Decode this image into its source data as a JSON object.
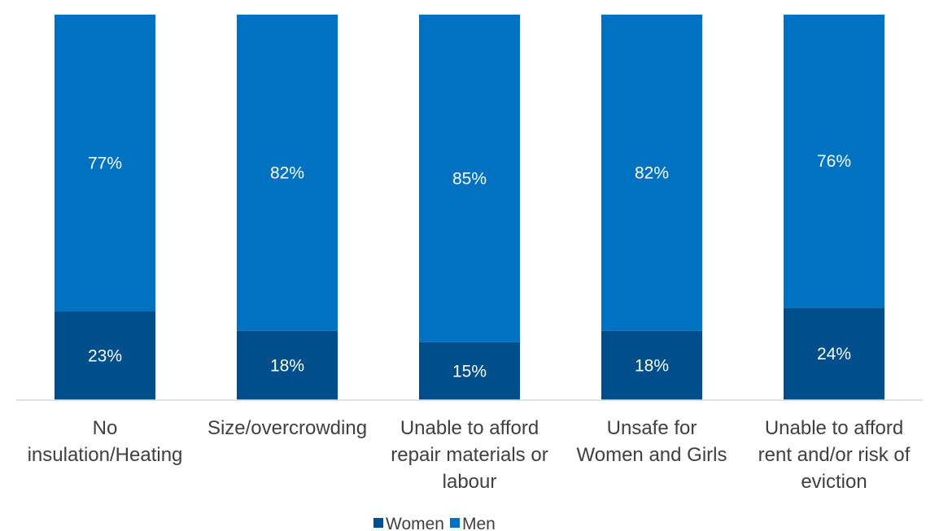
{
  "chart_data": {
    "type": "bar",
    "stacked": true,
    "percent_stacked": true,
    "categories": [
      [
        "No",
        "insulation/Heating"
      ],
      [
        "Size/overcrowding"
      ],
      [
        "Unable to afford",
        "repair materials or",
        "labour"
      ],
      [
        "Unsafe for",
        "Women and Girls"
      ],
      [
        "Unable to afford",
        "rent and/or risk of",
        "eviction"
      ]
    ],
    "series": [
      {
        "name": "Women",
        "values": [
          23,
          18,
          15,
          18,
          24
        ],
        "labels": [
          "23%",
          "18%",
          "15%",
          "18%",
          "24%"
        ],
        "color": "#004f8c"
      },
      {
        "name": "Men",
        "values": [
          77,
          82,
          85,
          82,
          76
        ],
        "labels": [
          "77%",
          "82%",
          "85%",
          "82%",
          "76%"
        ],
        "color": "#0072c1"
      }
    ],
    "ylim": [
      0,
      100
    ],
    "grid": false,
    "legend_position": "bottom"
  }
}
